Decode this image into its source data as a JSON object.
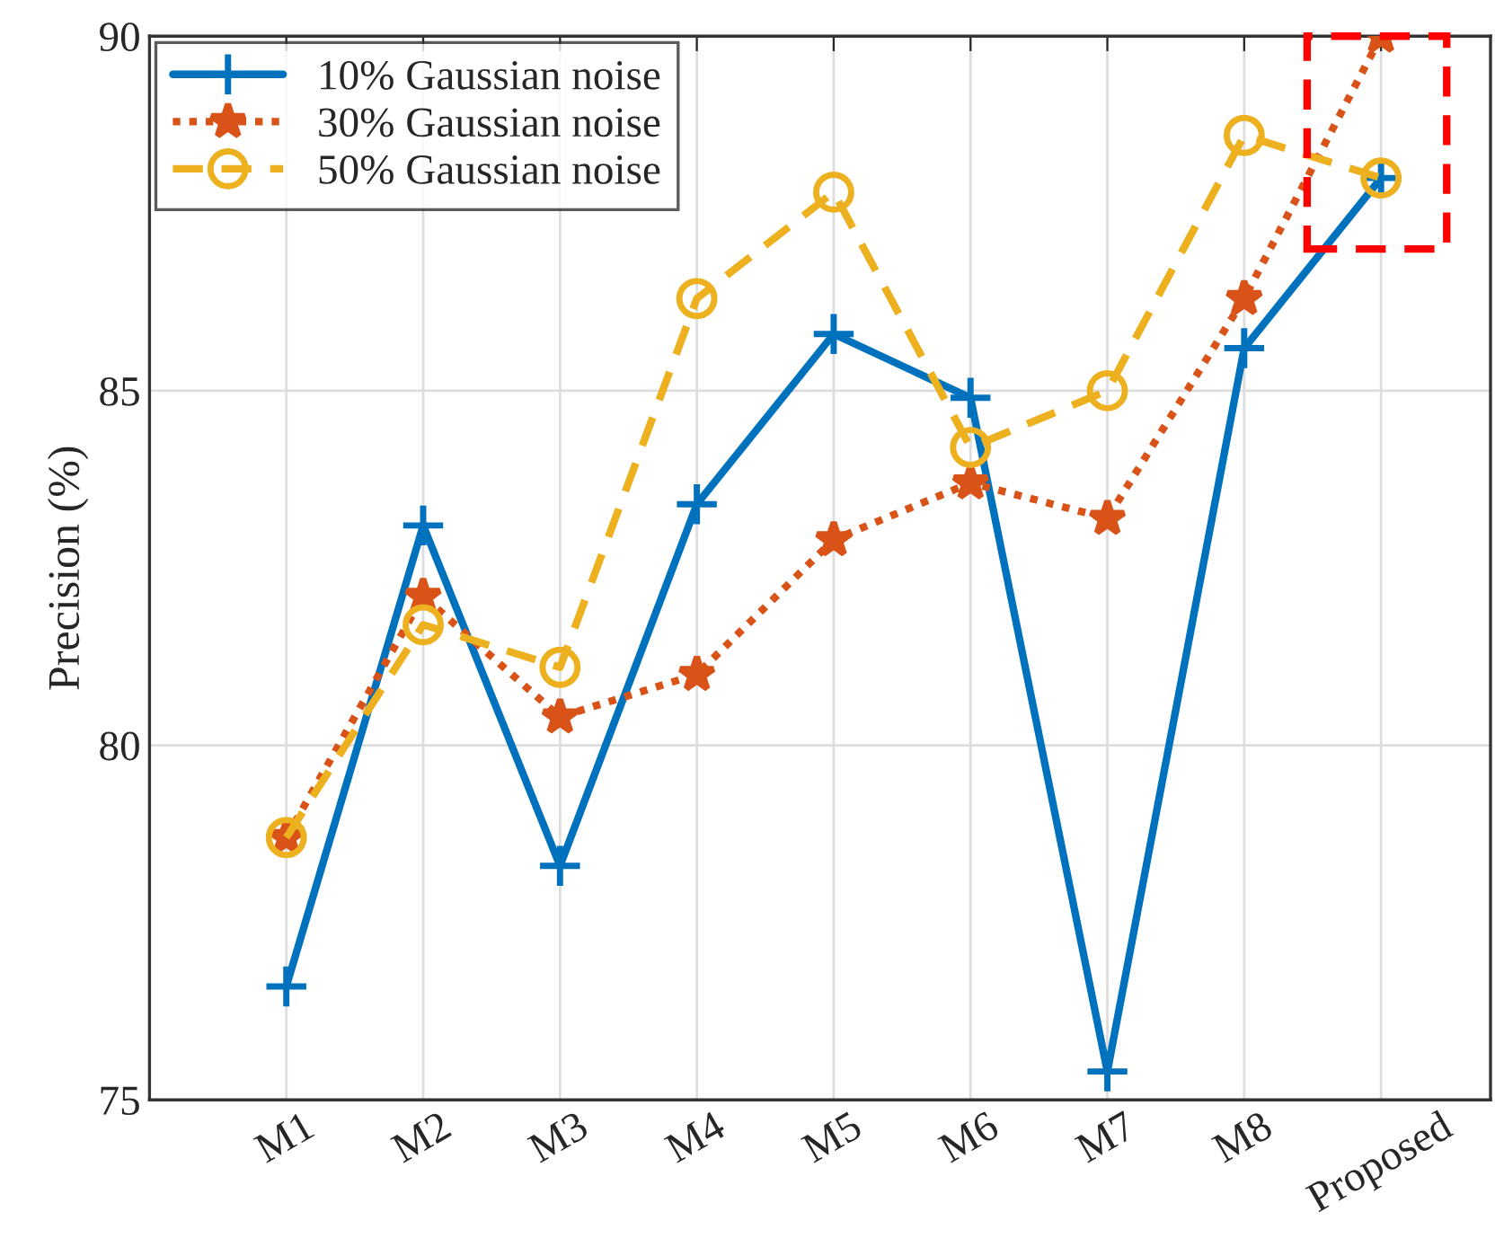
{
  "chart_data": {
    "type": "line",
    "ylabel": "Precision (%)",
    "categories": [
      "M1",
      "M2",
      "M3",
      "M4",
      "M5",
      "M6",
      "M7",
      "M8",
      "Proposed"
    ],
    "series": [
      {
        "name": "10% Gaussian noise",
        "color": "#0072bd",
        "marker": "cross",
        "line_style": "solid",
        "values": [
          76.6,
          83.1,
          78.3,
          83.4,
          85.8,
          84.9,
          75.4,
          85.6,
          88.0
        ]
      },
      {
        "name": "30% Gaussian noise",
        "color": "#d95319",
        "marker": "star",
        "line_style": "dotted",
        "values": [
          78.7,
          82.1,
          80.4,
          81.0,
          82.9,
          83.7,
          83.2,
          86.3,
          90.0
        ]
      },
      {
        "name": "50% Gaussian noise",
        "color": "#edb120",
        "marker": "circle",
        "line_style": "dashed",
        "values": [
          78.7,
          81.7,
          81.1,
          86.3,
          87.8,
          84.2,
          85.0,
          88.6,
          88.0
        ]
      }
    ],
    "ylim": [
      75,
      90
    ],
    "yticks": [
      75,
      80,
      85,
      90
    ],
    "grid": true,
    "legend": "top left"
  }
}
